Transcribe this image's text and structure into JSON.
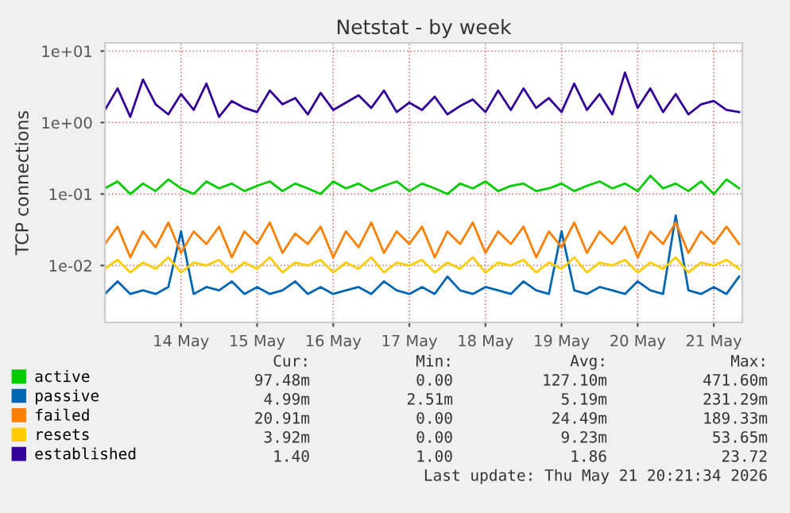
{
  "chart_data": {
    "type": "line",
    "title": "Netstat - by week",
    "ylabel": "TCP connections",
    "x": [
      "2026-05-13T00:00",
      "2026-05-13T04:00",
      "2026-05-13T08:00",
      "2026-05-13T12:00",
      "2026-05-13T16:00",
      "2026-05-13T20:00",
      "2026-05-14T00:00",
      "2026-05-14T04:00",
      "2026-05-14T08:00",
      "2026-05-14T12:00",
      "2026-05-14T16:00",
      "2026-05-14T20:00",
      "2026-05-15T00:00",
      "2026-05-15T04:00",
      "2026-05-15T08:00",
      "2026-05-15T12:00",
      "2026-05-15T16:00",
      "2026-05-15T20:00",
      "2026-05-16T00:00",
      "2026-05-16T04:00",
      "2026-05-16T08:00",
      "2026-05-16T12:00",
      "2026-05-16T16:00",
      "2026-05-16T20:00",
      "2026-05-17T00:00",
      "2026-05-17T04:00",
      "2026-05-17T08:00",
      "2026-05-17T12:00",
      "2026-05-17T16:00",
      "2026-05-17T20:00",
      "2026-05-18T00:00",
      "2026-05-18T04:00",
      "2026-05-18T08:00",
      "2026-05-18T12:00",
      "2026-05-18T16:00",
      "2026-05-18T20:00",
      "2026-05-19T00:00",
      "2026-05-19T04:00",
      "2026-05-19T08:00",
      "2026-05-19T12:00",
      "2026-05-19T16:00",
      "2026-05-19T20:00",
      "2026-05-20T00:00",
      "2026-05-20T04:00",
      "2026-05-20T08:00",
      "2026-05-20T12:00",
      "2026-05-20T16:00",
      "2026-05-20T20:00",
      "2026-05-21T00:00",
      "2026-05-21T04:00",
      "2026-05-21T08:00"
    ],
    "series": [
      {
        "name": "active",
        "color": "#00cc00",
        "values": [
          0.12,
          0.15,
          0.1,
          0.14,
          0.11,
          0.16,
          0.12,
          0.1,
          0.15,
          0.12,
          0.14,
          0.11,
          0.13,
          0.15,
          0.11,
          0.14,
          0.12,
          0.1,
          0.15,
          0.12,
          0.14,
          0.11,
          0.13,
          0.15,
          0.11,
          0.14,
          0.12,
          0.1,
          0.14,
          0.12,
          0.15,
          0.11,
          0.13,
          0.14,
          0.11,
          0.12,
          0.14,
          0.11,
          0.13,
          0.15,
          0.12,
          0.14,
          0.11,
          0.18,
          0.12,
          0.14,
          0.11,
          0.15,
          0.1,
          0.16,
          0.12
        ]
      },
      {
        "name": "passive",
        "color": "#0066b3",
        "values": [
          0.004,
          0.006,
          0.004,
          0.0045,
          0.004,
          0.005,
          0.03,
          0.004,
          0.005,
          0.0045,
          0.006,
          0.004,
          0.005,
          0.004,
          0.0045,
          0.006,
          0.004,
          0.005,
          0.004,
          0.0045,
          0.005,
          0.004,
          0.006,
          0.0045,
          0.004,
          0.005,
          0.004,
          0.007,
          0.0045,
          0.004,
          0.005,
          0.0045,
          0.004,
          0.006,
          0.0045,
          0.004,
          0.03,
          0.0045,
          0.004,
          0.005,
          0.0045,
          0.004,
          0.006,
          0.0045,
          0.004,
          0.05,
          0.0045,
          0.004,
          0.005,
          0.004,
          0.007
        ]
      },
      {
        "name": "failed",
        "color": "#ff8000",
        "values": [
          0.02,
          0.035,
          0.013,
          0.03,
          0.018,
          0.04,
          0.015,
          0.03,
          0.02,
          0.035,
          0.013,
          0.03,
          0.02,
          0.04,
          0.015,
          0.028,
          0.02,
          0.035,
          0.013,
          0.03,
          0.018,
          0.04,
          0.015,
          0.03,
          0.02,
          0.035,
          0.013,
          0.03,
          0.02,
          0.04,
          0.015,
          0.03,
          0.02,
          0.035,
          0.013,
          0.03,
          0.018,
          0.04,
          0.015,
          0.03,
          0.02,
          0.035,
          0.013,
          0.03,
          0.02,
          0.04,
          0.015,
          0.03,
          0.02,
          0.035,
          0.02
        ]
      },
      {
        "name": "resets",
        "color": "#ffcc00",
        "values": [
          0.009,
          0.012,
          0.008,
          0.011,
          0.009,
          0.013,
          0.008,
          0.011,
          0.01,
          0.012,
          0.008,
          0.011,
          0.009,
          0.013,
          0.008,
          0.011,
          0.01,
          0.012,
          0.008,
          0.011,
          0.009,
          0.013,
          0.008,
          0.011,
          0.01,
          0.012,
          0.008,
          0.011,
          0.009,
          0.013,
          0.008,
          0.011,
          0.01,
          0.012,
          0.008,
          0.011,
          0.009,
          0.013,
          0.008,
          0.011,
          0.01,
          0.012,
          0.008,
          0.011,
          0.009,
          0.013,
          0.008,
          0.011,
          0.01,
          0.012,
          0.009
        ]
      },
      {
        "name": "established",
        "color": "#330099",
        "values": [
          1.5,
          3,
          1.2,
          4,
          1.8,
          1.3,
          2.5,
          1.5,
          3.5,
          1.2,
          2,
          1.6,
          1.4,
          2.8,
          1.8,
          2.2,
          1.3,
          2.6,
          1.5,
          1.9,
          2.4,
          1.6,
          2.8,
          1.4,
          1.9,
          1.5,
          2.3,
          1.3,
          1.7,
          2.1,
          1.4,
          2.8,
          1.5,
          3,
          1.6,
          2.2,
          1.4,
          3.5,
          1.5,
          2.5,
          1.3,
          5,
          1.6,
          3,
          1.4,
          2.5,
          1.3,
          1.8,
          2,
          1.5,
          1.4
        ]
      }
    ],
    "log": "y",
    "ylim": [
      0.0016,
      13
    ],
    "yticks": [
      {
        "value": 0.01,
        "label": "1e-02"
      },
      {
        "value": 0.1,
        "label": "1e-01"
      },
      {
        "value": 1,
        "label": "1e+00"
      },
      {
        "value": 10,
        "label": "1e+01"
      }
    ],
    "xlim": [
      "2026-05-13T00:00",
      "2026-05-21T09:00"
    ],
    "xticks": [
      {
        "value": "2026-05-14",
        "label": "14 May"
      },
      {
        "value": "2026-05-15",
        "label": "15 May"
      },
      {
        "value": "2026-05-16",
        "label": "16 May"
      },
      {
        "value": "2026-05-17",
        "label": "17 May"
      },
      {
        "value": "2026-05-18",
        "label": "18 May"
      },
      {
        "value": "2026-05-19",
        "label": "19 May"
      },
      {
        "value": "2026-05-20",
        "label": "20 May"
      },
      {
        "value": "2026-05-21",
        "label": "21 May"
      }
    ],
    "grid": true,
    "legend": "bottom",
    "line_style": "solid",
    "annotations": [
      "Cur:",
      "Min:",
      "Avg:",
      "Max:",
      "97.48m",
      "0.00",
      "127.10m",
      "471.60m",
      "4.99m",
      "2.51m",
      "5.19m",
      "231.29m",
      "20.91m",
      "0.00",
      "24.49m",
      "189.33m",
      "3.92m",
      "0.00",
      "9.23m",
      "53.65m",
      "1.40",
      "1.00",
      "1.86",
      "23.72",
      "Last update: Thu May 21 20:21:34 2026"
    ]
  }
}
